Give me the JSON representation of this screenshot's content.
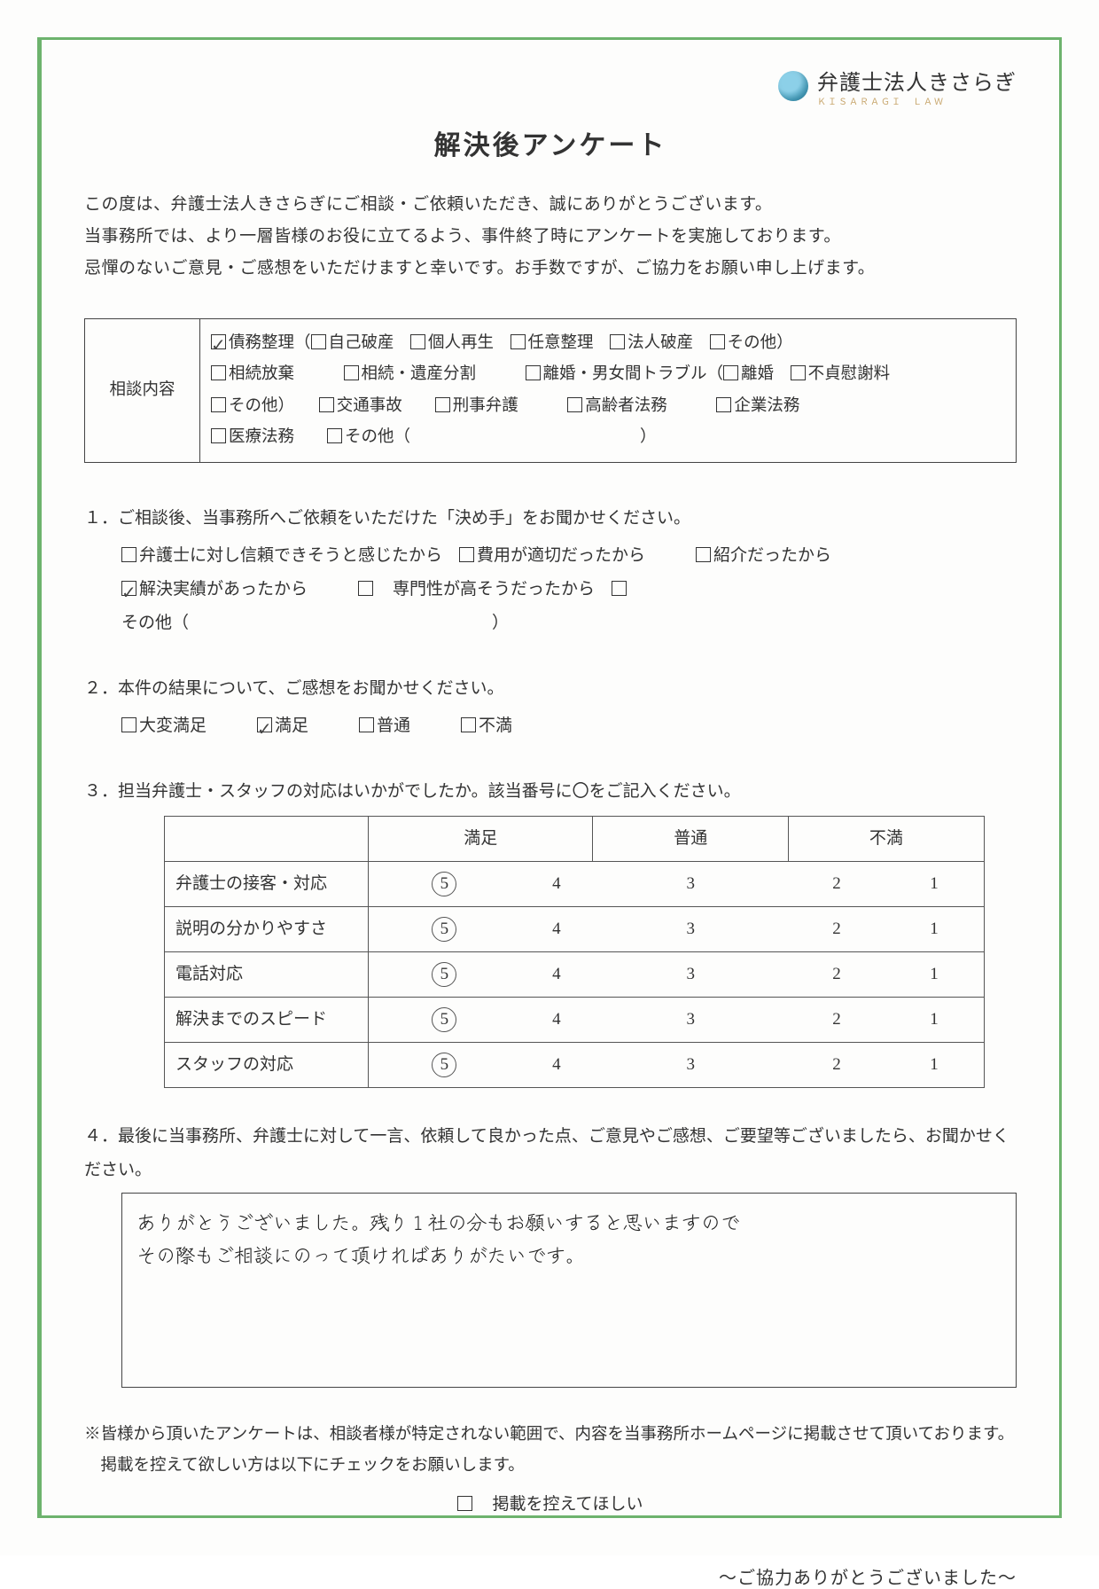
{
  "colors": {
    "frame_border": "#6db36d",
    "text": "#333333",
    "background": "#fdfdfc",
    "table_border": "#444444",
    "logo_gradient": [
      "#8cd0e8",
      "#4aa8c8",
      "#2b88a8"
    ]
  },
  "typography": {
    "body_family": "Hiragino Mincho ProN, Yu Mincho, serif",
    "handwriting_family": "Zen Kurenaido, Yomogi, cursive",
    "title_size_pt": 22,
    "body_size_pt": 14
  },
  "logo": {
    "name": "弁護士法人きさらぎ",
    "sub": "ＫＩＳＡＲＡＧＩ　ＬＡＷ"
  },
  "title": "解決後アンケート",
  "intro": {
    "l1": "この度は、弁護士法人きさらぎにご相談・ご依頼いただき、誠にありがとうございます。",
    "l2": "当事務所では、より一層皆様のお役に立てるよう、事件終了時にアンケートを実施しております。",
    "l3": "忌憚のないご意見・ご感想をいただけますと幸いです。お手数ですが、ご協力をお願い申し上げます。"
  },
  "consult": {
    "label": "相談内容",
    "options": [
      {
        "text": "債務整理（",
        "checked": true
      },
      {
        "text": "自己破産　",
        "checked": false
      },
      {
        "text": "個人再生　",
        "checked": false
      },
      {
        "text": "任意整理　",
        "checked": false
      },
      {
        "text": "法人破産　",
        "checked": false
      },
      {
        "text": "その他）",
        "checked": false
      }
    ],
    "line2": [
      {
        "text": "相続放棄　　　",
        "checked": false
      },
      {
        "text": "相続・遺産分割　　　",
        "checked": false
      },
      {
        "text": "離婚・男女間トラブル（",
        "checked": false
      },
      {
        "text": "離婚　",
        "checked": false
      },
      {
        "text": "不貞慰謝料",
        "checked": false
      }
    ],
    "line3": [
      {
        "text": "その他）　　",
        "checked": false
      },
      {
        "text": "交通事故　　",
        "checked": false
      },
      {
        "text": "刑事弁護　　　",
        "checked": false
      },
      {
        "text": "高齢者法務　　　",
        "checked": false
      },
      {
        "text": "企業法務",
        "checked": false
      }
    ],
    "line4_a": {
      "text": "医療法務　　",
      "checked": false
    },
    "line4_b": {
      "text": "その他（　　　　　　　　　　　　　　）",
      "checked": false
    }
  },
  "q1": {
    "title": "１．ご相談後、当事務所へご依頼をいただけた「決め手」をお聞かせください。",
    "opts_l1": [
      {
        "text": "弁護士に対し信頼できそうと感じたから　",
        "checked": false
      },
      {
        "text": "費用が適切だったから　　　",
        "checked": false
      },
      {
        "text": "紹介だったから",
        "checked": false
      }
    ],
    "opts_l2": [
      {
        "text": "解決実績があったから　　　",
        "checked": true
      },
      {
        "text": "　専門性が高そうだったから　",
        "checked": false
      },
      {
        "text": "その他（　　　　　　　　　　　　　　　　　　）",
        "checked": false
      }
    ]
  },
  "q2": {
    "title": "２．本件の結果について、ご感想をお聞かせください。",
    "opts": [
      {
        "text": "大変満足　　　",
        "checked": false
      },
      {
        "text": "満足　　　",
        "checked": true
      },
      {
        "text": "普通　　　",
        "checked": false
      },
      {
        "text": "不満",
        "checked": false
      }
    ]
  },
  "q3": {
    "title": "３．担当弁護士・スタッフの対応はいかがでしたか。該当番号に〇をご記入ください。",
    "headers": {
      "h1": "満足",
      "h2": "普通",
      "h3": "不満"
    },
    "scores": [
      "5",
      "4",
      "3",
      "2",
      "1"
    ],
    "rows": [
      {
        "label": "弁護士の接客・対応",
        "circled": 5
      },
      {
        "label": "説明の分かりやすさ",
        "circled": 5
      },
      {
        "label": "電話対応",
        "circled": 5
      },
      {
        "label": "解決までのスピード",
        "circled": 5
      },
      {
        "label": "スタッフの対応",
        "circled": 5
      }
    ]
  },
  "q4": {
    "title": "４．最後に当事務所、弁護士に対して一言、依頼して良かった点、ご意見やご感想、ご要望等ございましたら、お聞かせください。",
    "handwriting_l1": "ありがとうございました。残り１社の分もお願いすると思いますので",
    "handwriting_l2": "その際もご相談にのって頂ければありがたいです。"
  },
  "footer": {
    "note": "※皆様から頂いたアンケートは、相談者様が特定されない範囲で、内容を当事務所ホームページに掲載させて頂いております。掲載を控えて欲しい方は以下にチェックをお願いします。",
    "withhold": {
      "text": "　掲載を控えてほしい",
      "checked": false
    },
    "thanks": "～ご協力ありがとうございました～"
  }
}
